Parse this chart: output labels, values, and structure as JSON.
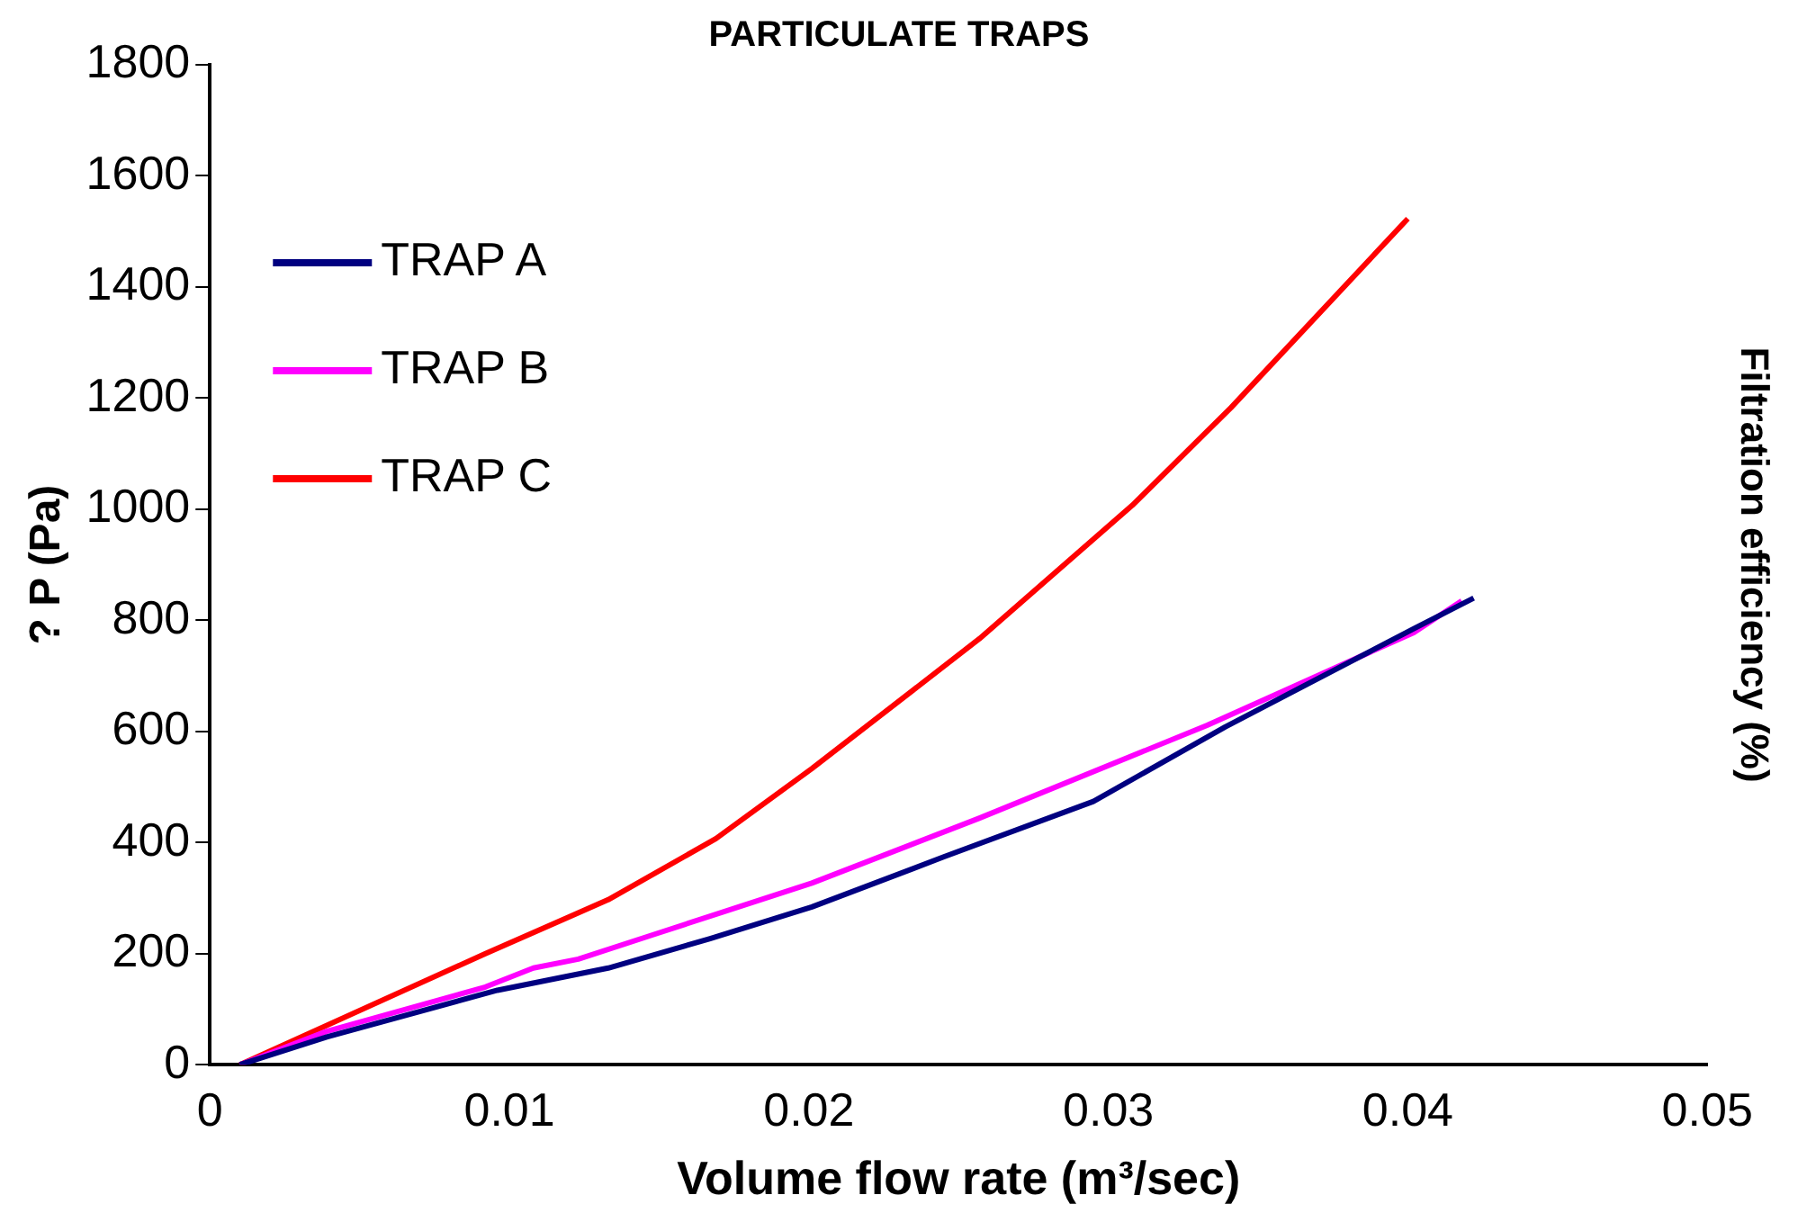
{
  "chart_data": {
    "type": "line",
    "title": "PARTICULATE TRAPS",
    "xlabel": "Volume flow rate (m³/sec)",
    "ylabel": "? P (Pa)",
    "y2label": "Filtration efficiency (%)",
    "xlim": [
      0,
      0.05
    ],
    "xticks": [
      0,
      0.01,
      0.02,
      0.03,
      0.04,
      0.05
    ],
    "ylim": [
      0,
      1800
    ],
    "yticks": [
      0,
      200,
      400,
      600,
      800,
      1000,
      1200,
      1400,
      1600,
      1800
    ],
    "grid": false,
    "legend": "top left",
    "marker": "none",
    "line_style": "solid",
    "series": [
      {
        "name": "TRAP A",
        "color": "#000080",
        "x": [
          0.001,
          0.0039,
          0.0096,
          0.0133,
          0.0167,
          0.0201,
          0.0245,
          0.0295,
          0.0339,
          0.0402,
          0.0422
        ],
        "values": [
          0,
          50,
          134,
          174,
          227,
          284,
          374,
          474,
          608,
          785,
          840
        ]
      },
      {
        "name": "TRAP B",
        "color": "#ff00ff",
        "x": [
          0.001,
          0.0039,
          0.0092,
          0.0108,
          0.0123,
          0.0148,
          0.0201,
          0.0257,
          0.0333,
          0.0402,
          0.0418
        ],
        "values": [
          0,
          60,
          140,
          174,
          190,
          234,
          327,
          444,
          611,
          778,
          835
        ]
      },
      {
        "name": "TRAP C",
        "color": "#ff0000",
        "x": [
          0.001,
          0.0092,
          0.0133,
          0.0169,
          0.0201,
          0.0257,
          0.0308,
          0.0341,
          0.04
        ],
        "values": [
          0,
          200,
          297,
          407,
          533,
          767,
          1007,
          1183,
          1523
        ]
      }
    ]
  }
}
